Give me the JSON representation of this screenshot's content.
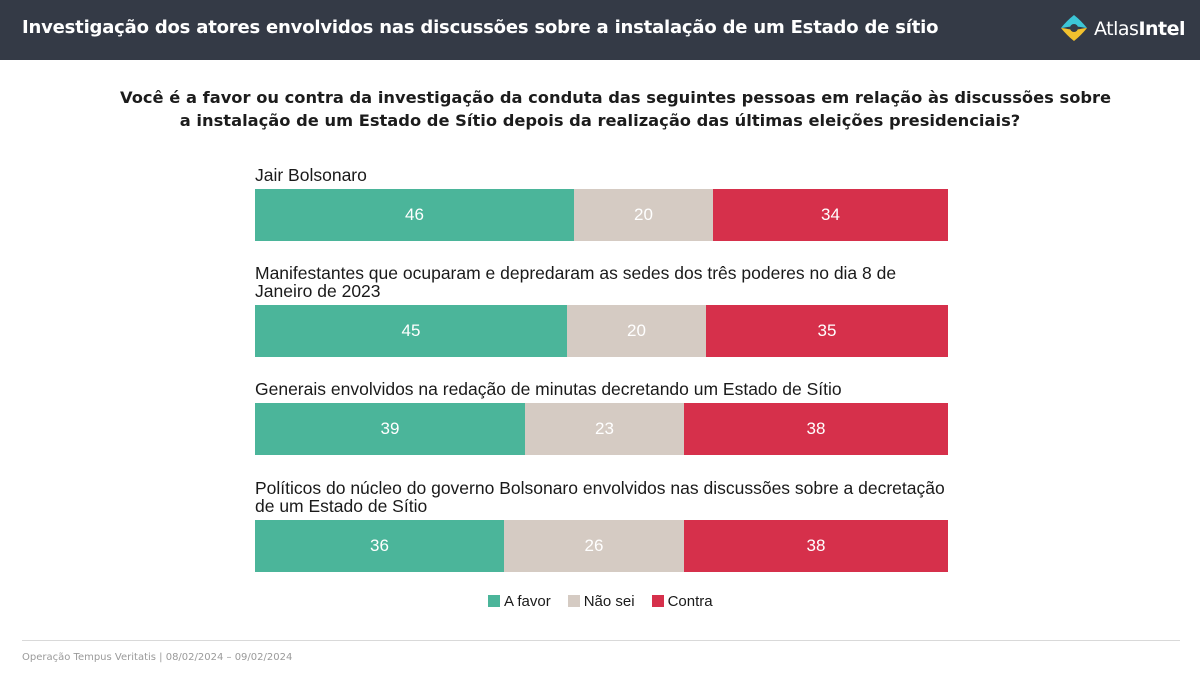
{
  "header": {
    "title": "Investigação dos atores envolvidos nas discussões sobre a instalação de um Estado de sítio",
    "logo_part1": "Atlas",
    "logo_part2": "Intel"
  },
  "colors": {
    "favor": "#4bb59a",
    "nao_sei": "#d5cbc3",
    "contra": "#d6304b",
    "header_bg": "#343a46"
  },
  "chart_data": {
    "type": "bar",
    "orientation": "horizontal-stacked-100",
    "title_lines": [
      "Você é a favor ou contra da investigação da conduta das seguintes pessoas em relação às discussões sobre",
      "a instalação de um Estado de Sítio depois da realização das últimas eleições presidenciais?"
    ],
    "categories": [
      [
        "Jair Bolsonaro"
      ],
      [
        "Manifestantes que ocuparam e depredaram as sedes dos três poderes no dia 8 de",
        "Janeiro de 2023"
      ],
      [
        "Generais envolvidos na redação de minutas decretando um Estado de Sítio"
      ],
      [
        "Políticos do núcleo do governo Bolsonaro envolvidos nas discussões sobre a decretação",
        "de um Estado de Sítio"
      ]
    ],
    "series": [
      {
        "name": "A favor",
        "values": [
          46,
          45,
          39,
          36
        ]
      },
      {
        "name": "Não sei",
        "values": [
          20,
          20,
          23,
          26
        ]
      },
      {
        "name": "Contra",
        "values": [
          34,
          35,
          38,
          38
        ]
      }
    ],
    "xlim": [
      0,
      100
    ],
    "grid": false,
    "legend": "bottom-center"
  },
  "footer": {
    "source": "Operação Tempus Veritatis | 08/02/2024 – 09/02/2024"
  }
}
